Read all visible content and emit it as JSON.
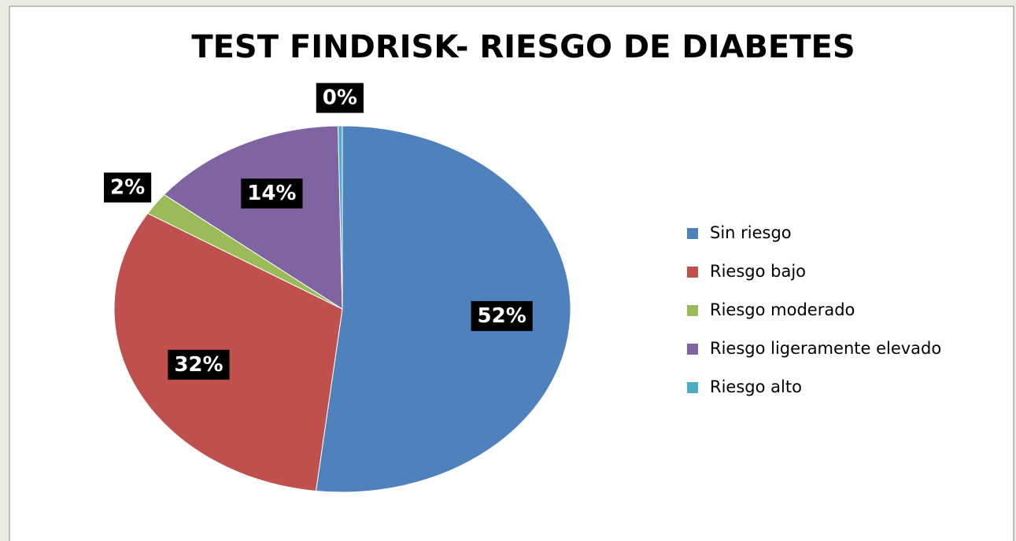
{
  "chart_data": {
    "type": "pie",
    "title": "TEST FINDRISK- RIESGO DE DIABETES",
    "categories": [
      "Sin riesgo",
      "Riesgo bajo",
      "Riesgo moderado",
      "Riesgo ligeramente elevado",
      "Riesgo alto"
    ],
    "values": [
      52,
      32,
      2,
      14,
      0.3
    ],
    "value_labels": [
      "52%",
      "32%",
      "2%",
      "14%",
      "0%"
    ],
    "colors": [
      "#4f81bd",
      "#c0504d",
      "#9bbb59",
      "#8064a2",
      "#4bacc6"
    ],
    "legend": "right"
  }
}
